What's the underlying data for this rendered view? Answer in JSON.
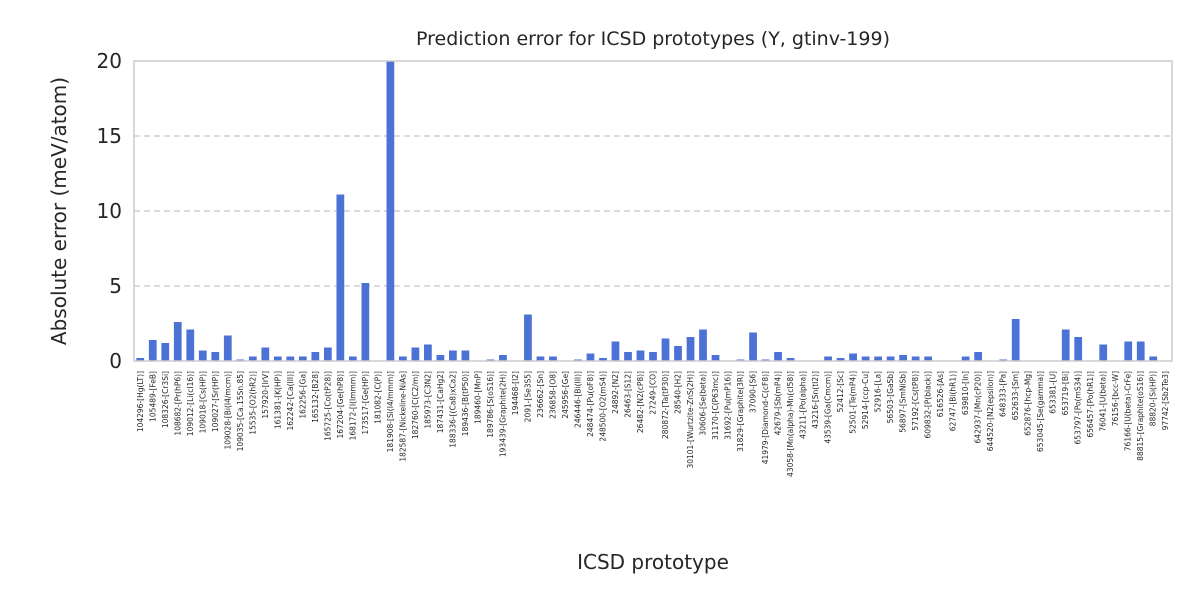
{
  "chart_data": {
    "type": "bar",
    "title": "Prediction error for ICSD prototypes (Y, gtinv-199)",
    "xlabel": "ICSD prototype",
    "ylabel": "Absolute error (meV/atom)",
    "ylim": [
      0,
      20
    ],
    "yticks": [
      0,
      5,
      10,
      15,
      20
    ],
    "grid": "y-dashed",
    "bar_color": "#4c72d6",
    "categories": [
      "104296-[Hg(LT)]",
      "105489-[FeB]",
      "108326-[Cr3Si]",
      "108682-[Pr(hP6)]",
      "109012-[Li(cI16)]",
      "109018-[Cs(HP)]",
      "109027-[Sr(HP)]",
      "109028-[Bi(I4/mcm)]",
      "109035-[Ca.15Sn.85]",
      "15535-[O2(hR2)]",
      "157920-[IrV]",
      "161381-[K(HP)]",
      "162242-[Ca(III)]",
      "162256-[Ga]",
      "165132-[B28]",
      "165725-[Co(tP28)]",
      "167204-[Ge(hP8)]",
      "168172-[I(Immm)]",
      "173517-[Ge(HP)]",
      "181082-[C(P)]",
      "181908-[Si(I4/mmm)]",
      "182587-[Nickeline-NiAs]",
      "182760-[C(C2/m)]",
      "185973-[C3N2]",
      "187431-[CaHg2]",
      "188336-[(Ca8)xCa2]",
      "189436-[B(tP50)]",
      "189460-[MnP]",
      "189786-[S(oS16)]",
      "193439-[Graphite(2H)]",
      "194468-[I2]",
      "2091-[Se3S5]",
      "236662-[Sn]",
      "236858-[O8]",
      "245956-[Ge]",
      "246446-[Bi(III)]",
      "248474-[Pu(oF8)]",
      "248500-[O2(mS4)]",
      "24892-[N2]",
      "26463-[S12]",
      "26482-[N2(cP8)]",
      "27249-[CO]",
      "280872-[Ta(tP30)]",
      "28540-[H2]",
      "30101-[Wurtzite-ZnS(2H)]",
      "30606-[Se(beta)]",
      "31170-[C(P63mc)]",
      "31692-[Pu(mP16)]",
      "31829-[Graphite(3R)]",
      "37090-[S6]",
      "41979-[Diamond-C(cF8)]",
      "42679-[Sb(mP4)]",
      "43058-[Mn(alpha)-Mn(cI58)]",
      "43211-[Po(alpha)]",
      "43216-[Sn(tI2)]",
      "43539-[Ga(Cmcm)]",
      "52412-[Sc]",
      "52501-[Te(mP4)]",
      "52914-[ccp-Cu]",
      "52916-[La]",
      "56503-[GaSb]",
      "56897-[SmNiSb]",
      "57192-[Cs(tP8)]",
      "609832-[P(black)]",
      "616526-[As]",
      "62747-[Bi(hR1)]",
      "639810-[In]",
      "642937-[Mn(cP20)]",
      "644520-[N2(epsilon)]",
      "648333-[Pa]",
      "652633-[Sm]",
      "652876-[hcp-Mg]",
      "653045-[Se(gamma)]",
      "653381-[U]",
      "653719-[Bi]",
      "653797-[Po(mS34)]",
      "656457-[Po(hR1)]",
      "76041-[U(beta)]",
      "76156-[bcc-W]",
      "76166-[U(beta)-CrFe]",
      "88815-[Graphite(oS16)]",
      "88820-[Si(HP)]",
      "97742-[Sb2Te3]"
    ],
    "values": [
      0.2,
      1.4,
      1.2,
      2.6,
      2.1,
      0.7,
      0.6,
      1.7,
      0.1,
      0.3,
      0.9,
      0.3,
      0.3,
      0.3,
      0.6,
      0.9,
      11.1,
      0.3,
      5.2,
      0.0,
      20.0,
      0.3,
      0.9,
      1.1,
      0.4,
      0.7,
      0.7,
      0.0,
      0.1,
      0.4,
      0.0,
      3.1,
      0.3,
      0.3,
      0.0,
      0.1,
      0.5,
      0.2,
      1.3,
      0.6,
      0.7,
      0.6,
      1.5,
      1.0,
      1.6,
      2.1,
      0.4,
      0.0,
      0.1,
      1.9,
      0.1,
      0.6,
      0.2,
      0.0,
      0.0,
      0.3,
      0.2,
      0.5,
      0.3,
      0.3,
      0.3,
      0.4,
      0.3,
      0.3,
      0.0,
      0.0,
      0.3,
      0.6,
      0.0,
      0.1,
      2.8,
      0.0,
      0.0,
      0.0,
      2.1,
      1.6,
      0.0,
      1.1,
      0.0,
      1.3,
      1.3,
      0.3,
      0.0
    ]
  }
}
